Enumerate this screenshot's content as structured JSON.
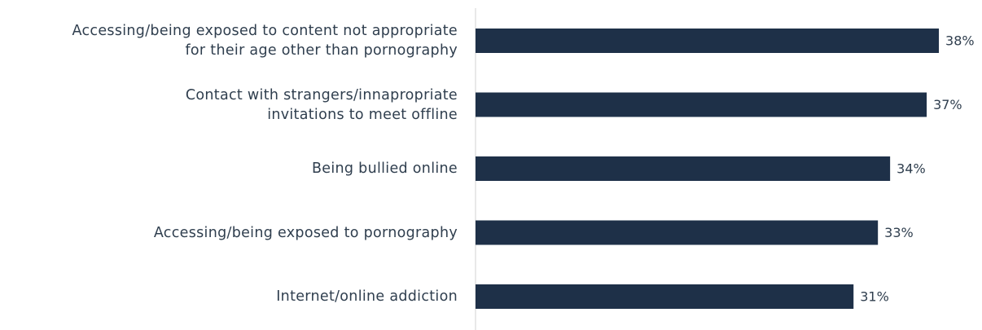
{
  "chart_data": {
    "type": "barh",
    "categories": [
      "Accessing/being exposed to content not appropriate\nfor their age other than pornography",
      "Contact with strangers/innapropriate\ninvitations to meet offline",
      "Being bullied online",
      "Accessing/being exposed to pornography",
      "Internet/online addiction"
    ],
    "values": [
      38,
      37,
      34,
      33,
      31
    ],
    "value_labels": [
      "38%",
      "37%",
      "34%",
      "33%",
      "31%"
    ],
    "color": "#1e3048",
    "xlim": [
      0,
      40
    ]
  }
}
